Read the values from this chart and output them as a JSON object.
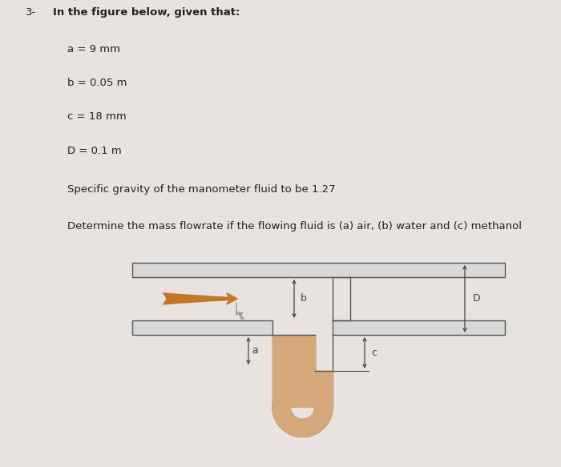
{
  "bg_color": "#e8e3de",
  "title_num": "3-",
  "title_text": "In the figure below, given that:",
  "lines": [
    "a = 9 mm",
    "b = 0.05 m",
    "c = 18 mm",
    "D = 0.1 m",
    "Specific gravity of the manometer fluid to be 1.27",
    "Determine the mass flowrate if the flowing fluid is (a) air, (b) water and (c) methanol"
  ],
  "pipe_color": "#d8d8d8",
  "pipe_edge_color": "#555555",
  "manometer_fluid_color": "#d4a87a",
  "arrow_color": "#c07828",
  "dim_color": "#444444",
  "text_color": "#222222",
  "font_size": 9.5,
  "title_font_size": 9.5
}
